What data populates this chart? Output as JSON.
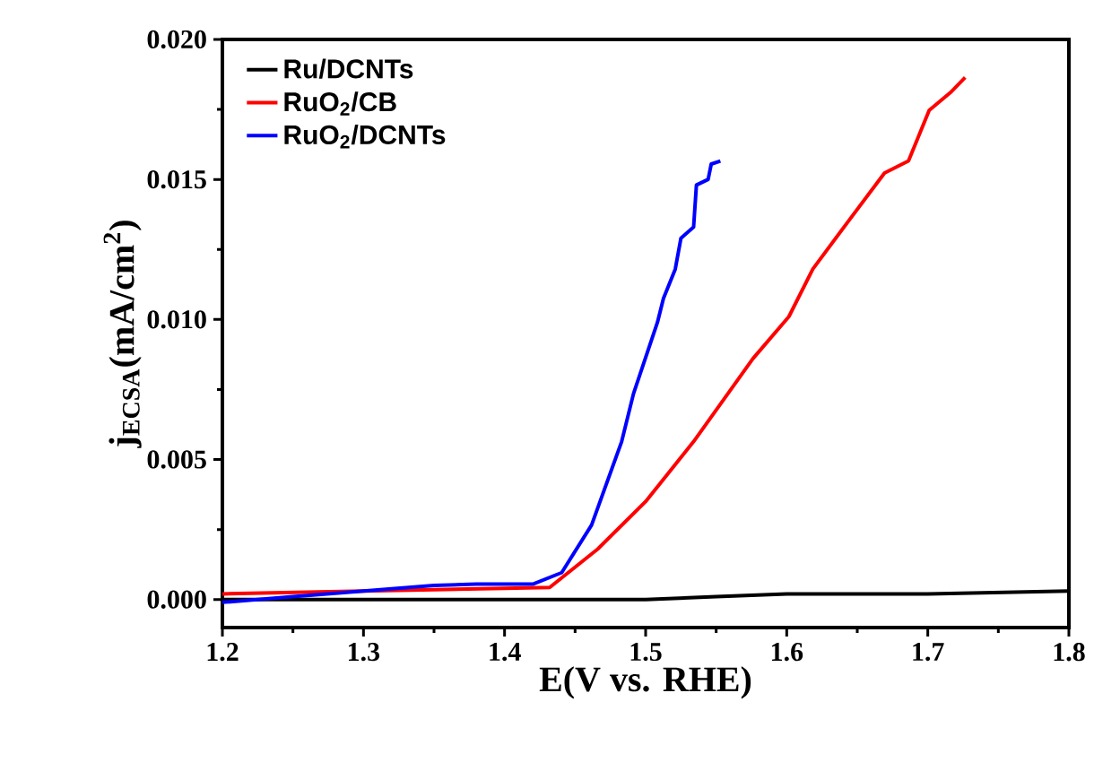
{
  "chart_data": {
    "type": "line",
    "xlabel": "E(V vs. RHE)",
    "ylabel": "j$_{ECSA}$(mA/cm$^{2}$)",
    "xlim": [
      1.2,
      1.8
    ],
    "ylim": [
      -0.001,
      0.02
    ],
    "xticks": [
      {
        "value": 1.2,
        "label": "1.2"
      },
      {
        "value": 1.3,
        "label": "1.3"
      },
      {
        "value": 1.4,
        "label": "1.4"
      },
      {
        "value": 1.5,
        "label": "1.5"
      },
      {
        "value": 1.6,
        "label": "1.6"
      },
      {
        "value": 1.7,
        "label": "1.7"
      },
      {
        "value": 1.8,
        "label": "1.8"
      }
    ],
    "yticks": [
      {
        "value": 0,
        "label": "0.000"
      },
      {
        "value": 0.005,
        "label": "0.005"
      },
      {
        "value": 0.01,
        "label": "0.010"
      },
      {
        "value": 0.015,
        "label": "0.015"
      },
      {
        "value": 0.02,
        "label": "0.020"
      }
    ],
    "legend": "top left",
    "grid": false,
    "marker": "none",
    "line_style": "solid",
    "series": [
      {
        "name": "Ru/DCNTs",
        "color": "#000000",
        "x": [
          1.2,
          1.3,
          1.4,
          1.5,
          1.55,
          1.6,
          1.7,
          1.8
        ],
        "values": [
          0.0,
          0.0,
          0.0,
          0.0,
          0.0001,
          0.0002,
          0.0002,
          0.0003
        ]
      },
      {
        "name": "RuO$_{2}$/CB",
        "color": "#ff0000",
        "x": [
          1.2,
          1.3,
          1.4,
          1.432,
          1.466,
          1.5,
          1.534,
          1.576,
          1.6015,
          1.6185,
          1.644,
          1.6693,
          1.6863,
          1.701,
          1.716,
          1.7265
        ],
        "values": [
          0.0002,
          0.0003,
          0.0004,
          0.00043,
          0.0018,
          0.0035,
          0.00564,
          0.0086,
          0.0101,
          0.0118,
          0.01353,
          0.01523,
          0.01566,
          0.01747,
          0.0181,
          0.01864
        ]
      },
      {
        "name": "RuO$_{2}$/DCNTs",
        "color": "#0000ff",
        "x": [
          1.2,
          1.25,
          1.3,
          1.35,
          1.38,
          1.42,
          1.4405,
          1.4617,
          1.483,
          1.4914,
          1.5084,
          1.5126,
          1.521,
          1.525,
          1.534,
          1.536,
          1.5443,
          1.5465,
          1.553
        ],
        "values": [
          -0.0001,
          0.0001,
          0.0003,
          0.0005,
          0.00055,
          0.00055,
          0.00096,
          0.00266,
          0.00564,
          0.00735,
          0.0099,
          0.01075,
          0.0118,
          0.0129,
          0.0133,
          0.0148,
          0.015,
          0.01555,
          0.01566
        ]
      }
    ]
  }
}
